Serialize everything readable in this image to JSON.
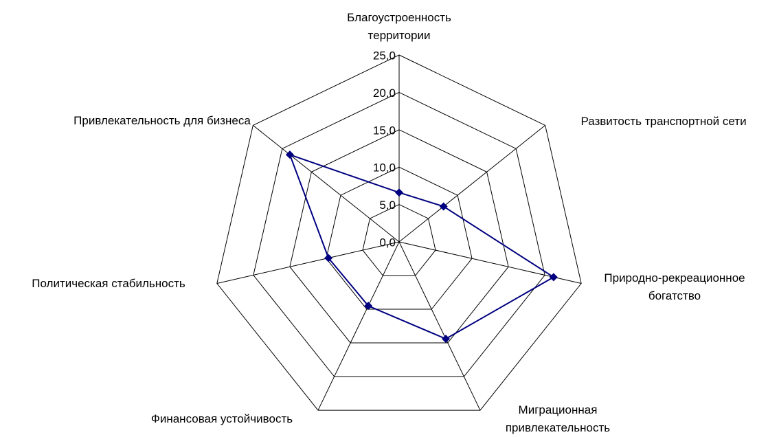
{
  "chart_data": {
    "type": "radar",
    "categories": [
      "Благоустроенность территории",
      "Развитость транспортной сети",
      "Природно-рекреационное богатство",
      "Миграционная привлекательность",
      "Финансовая устойчивость",
      "Политическая стабильность",
      "Привлекательность для бизнеса"
    ],
    "series": [
      {
        "color": "#000080",
        "values": [
          6.6,
          7.6,
          21.2,
          14.4,
          9.5,
          9.7,
          18.7
        ]
      }
    ],
    "ylim": [
      0,
      25
    ],
    "yticks": [
      {
        "value": 0,
        "label": "0,0"
      },
      {
        "value": 5,
        "label": "5,0"
      },
      {
        "value": 10,
        "label": "10,0"
      },
      {
        "value": 15,
        "label": "15,0"
      },
      {
        "value": 20,
        "label": "20,0"
      },
      {
        "value": 25,
        "label": "25,0"
      }
    ],
    "grid": true
  }
}
